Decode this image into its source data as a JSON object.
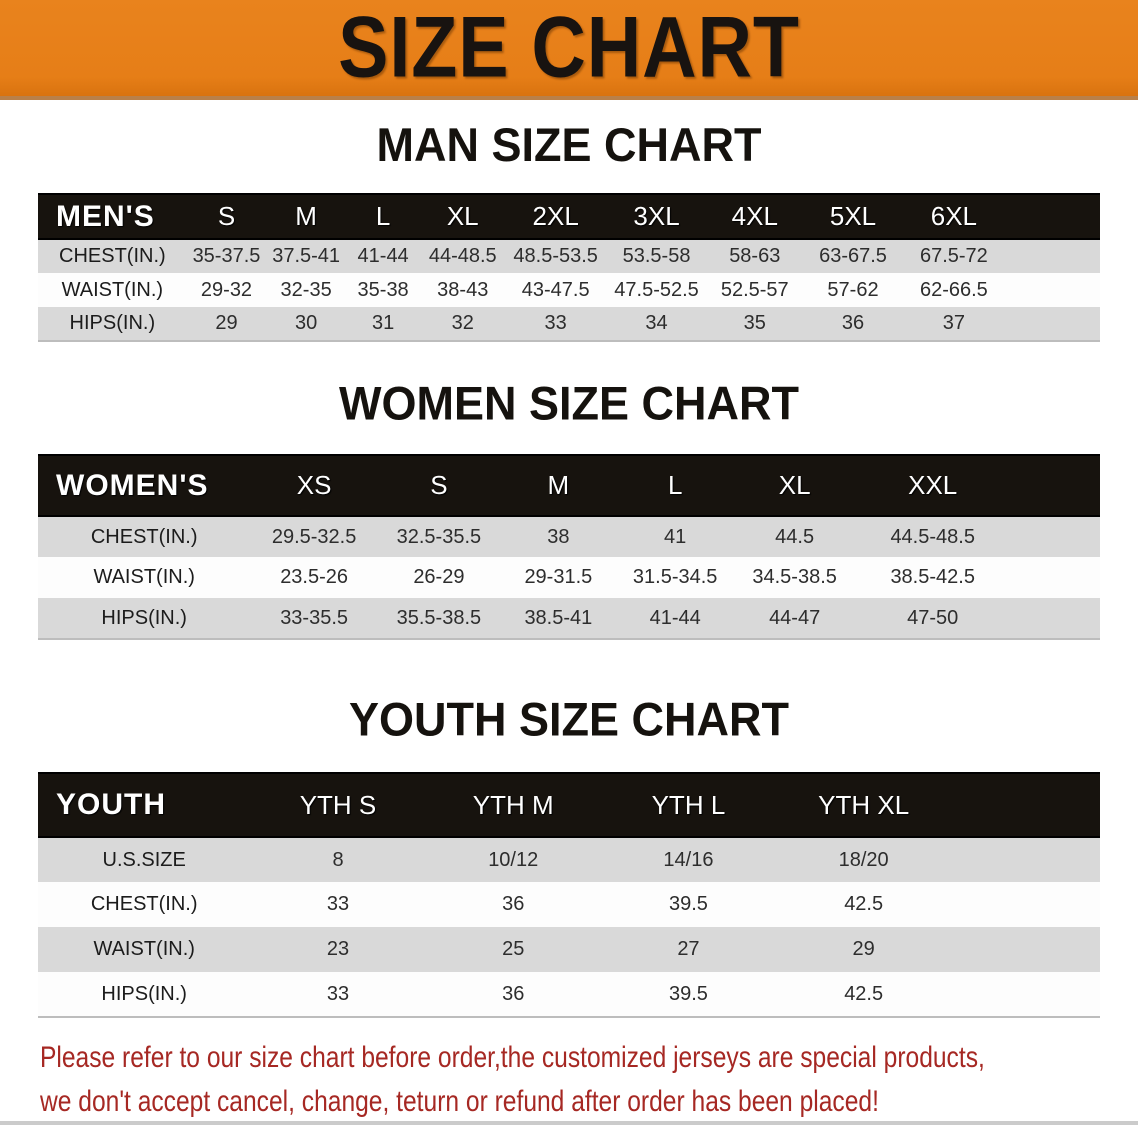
{
  "banner": {
    "title": "SIZE CHART"
  },
  "colors": {
    "banner_orange": "#e67e17",
    "table_header_black": "#17130e",
    "row_gray": "#d9d9d9",
    "row_white": "#fdfdfd",
    "note_red": "#a62823"
  },
  "sections": [
    {
      "id": "men",
      "title": "MAN SIZE CHART",
      "corner_label": "MEN'S",
      "columns": [
        "S",
        "M",
        "L",
        "XL",
        "2XL",
        "3XL",
        "4XL",
        "5XL",
        "6XL"
      ],
      "rows": [
        {
          "label": "CHEST(IN.)",
          "values": [
            "35-37.5",
            "37.5-41",
            "41-44",
            "44-48.5",
            "48.5-53.5",
            "53.5-58",
            "58-63",
            "63-67.5",
            "67.5-72"
          ]
        },
        {
          "label": "WAIST(IN.)",
          "values": [
            "29-32",
            "32-35",
            "35-38",
            "38-43",
            "43-47.5",
            "47.5-52.5",
            "52.5-57",
            "57-62",
            "62-66.5"
          ]
        },
        {
          "label": "HIPS(IN.)",
          "values": [
            "29",
            "30",
            "31",
            "32",
            "33",
            "34",
            "35",
            "36",
            "37"
          ]
        }
      ]
    },
    {
      "id": "women",
      "title": "WOMEN SIZE CHART",
      "corner_label": "WOMEN'S",
      "columns": [
        "XS",
        "S",
        "M",
        "L",
        "XL",
        "XXL"
      ],
      "rows": [
        {
          "label": "CHEST(IN.)",
          "values": [
            "29.5-32.5",
            "32.5-35.5",
            "38",
            "41",
            "44.5",
            "44.5-48.5"
          ]
        },
        {
          "label": "WAIST(IN.)",
          "values": [
            "23.5-26",
            "26-29",
            "29-31.5",
            "31.5-34.5",
            "34.5-38.5",
            "38.5-42.5"
          ]
        },
        {
          "label": "HIPS(IN.)",
          "values": [
            "33-35.5",
            "35.5-38.5",
            "38.5-41",
            "41-44",
            "44-47",
            "47-50"
          ]
        }
      ]
    },
    {
      "id": "youth",
      "title": "YOUTH SIZE CHART",
      "corner_label": "YOUTH",
      "columns": [
        "YTH S",
        "YTH M",
        "YTH L",
        "YTH XL"
      ],
      "rows": [
        {
          "label": "U.S.SIZE",
          "values": [
            "8",
            "10/12",
            "14/16",
            "18/20"
          ]
        },
        {
          "label": "CHEST(IN.)",
          "values": [
            "33",
            "36",
            "39.5",
            "42.5"
          ]
        },
        {
          "label": "WAIST(IN.)",
          "values": [
            "23",
            "25",
            "27",
            "29"
          ]
        },
        {
          "label": "HIPS(IN.)",
          "values": [
            "33",
            "36",
            "39.5",
            "42.5"
          ]
        }
      ]
    }
  ],
  "note": {
    "lines": [
      "Please refer to our size chart before order,the customized jerseys are special products,",
      "we don't accept cancel, change, teturn or refund after order has been placed!"
    ]
  }
}
